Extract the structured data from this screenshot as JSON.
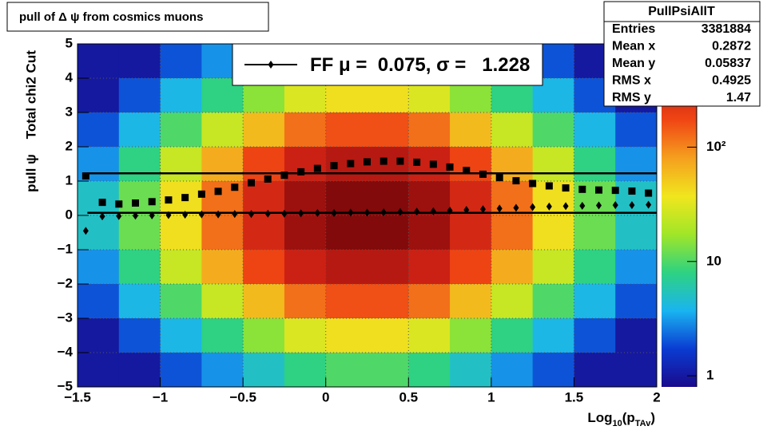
{
  "chart_data": {
    "type": "heatmap2d",
    "title": "pull of Δ ψ from cosmics muons",
    "ylabel": "pull ψ    Total chi2 Cut",
    "xlabel_parts": [
      {
        "text": "Log"
      },
      {
        "text": "10",
        "sub": true
      },
      {
        "text": "(p"
      },
      {
        "text": "TAv",
        "sub": true
      },
      {
        "text": ")"
      }
    ],
    "xlim": [
      -1.5,
      2
    ],
    "ylim": [
      -5,
      5
    ],
    "xticks": [
      {
        "value": -1.5,
        "label": "−1.5"
      },
      {
        "value": -1,
        "label": "−1"
      },
      {
        "value": -0.5,
        "label": "−0.5"
      },
      0,
      0.5,
      1,
      1.5,
      2
    ],
    "yticks": [
      {
        "value": -5,
        "label": "−5"
      },
      {
        "value": -4,
        "label": "−4"
      },
      {
        "value": -3,
        "label": "−3"
      },
      {
        "value": -2,
        "label": "−2"
      },
      {
        "value": -1,
        "label": "−1"
      },
      0,
      1,
      2,
      3,
      4,
      5
    ],
    "grid": true,
    "heatmap": {
      "x_edges": [
        -1.5,
        -1.25,
        -1,
        -0.75,
        -0.5,
        -0.25,
        0,
        0.25,
        0.5,
        0.75,
        1,
        1.25,
        1.5,
        1.75,
        2
      ],
      "y_edges": [
        5,
        4,
        3,
        2,
        1,
        0,
        -1,
        -2,
        -3,
        -4,
        -5
      ],
      "counts": [
        [
          1,
          1,
          2,
          3,
          5,
          8,
          10,
          10,
          8,
          5,
          3,
          2,
          1,
          1
        ],
        [
          1,
          2,
          4,
          8,
          15,
          30,
          40,
          40,
          30,
          15,
          8,
          4,
          2,
          1
        ],
        [
          2,
          4,
          10,
          25,
          60,
          120,
          160,
          160,
          120,
          60,
          25,
          10,
          4,
          2
        ],
        [
          3,
          8,
          25,
          70,
          180,
          350,
          450,
          450,
          350,
          180,
          70,
          25,
          8,
          3
        ],
        [
          5,
          12,
          40,
          120,
          300,
          600,
          800,
          800,
          600,
          300,
          120,
          40,
          12,
          5
        ],
        [
          5,
          12,
          40,
          120,
          300,
          600,
          800,
          800,
          600,
          300,
          120,
          40,
          12,
          5
        ],
        [
          3,
          8,
          25,
          70,
          180,
          350,
          450,
          450,
          350,
          180,
          70,
          25,
          8,
          3
        ],
        [
          2,
          4,
          10,
          25,
          60,
          120,
          160,
          160,
          120,
          60,
          25,
          10,
          4,
          2
        ],
        [
          1,
          2,
          4,
          8,
          15,
          30,
          40,
          40,
          30,
          15,
          8,
          4,
          2,
          1
        ],
        [
          1,
          1,
          2,
          3,
          5,
          8,
          10,
          10,
          8,
          5,
          3,
          2,
          1,
          1
        ]
      ]
    },
    "zlim": [
      0.8,
      800
    ],
    "zlog": true,
    "zticks": [
      1,
      10,
      {
        "value": 100,
        "label": "10²"
      }
    ],
    "palette": [
      "#1a0a8c",
      "#0a3cd2",
      "#1ab4f0",
      "#2ed282",
      "#a0e628",
      "#f0e61e",
      "#f5a01e",
      "#f04614",
      "#c81e14",
      "#820a0a"
    ],
    "x": [
      -1.45,
      -1.35,
      -1.25,
      -1.15,
      -1.05,
      -0.95,
      -0.85,
      -0.75,
      -0.65,
      -0.55,
      -0.45,
      -0.35,
      -0.25,
      -0.15,
      -0.05,
      0.05,
      0.15,
      0.25,
      0.35,
      0.45,
      0.55,
      0.65,
      0.75,
      0.85,
      0.95,
      1.05,
      1.15,
      1.25,
      1.35,
      1.45,
      1.55,
      1.65,
      1.75,
      1.85,
      1.95
    ],
    "series": [
      {
        "marker": "square",
        "color": "#000000",
        "values": [
          1.15,
          0.38,
          0.33,
          0.36,
          0.4,
          0.45,
          0.52,
          0.62,
          0.7,
          0.82,
          0.95,
          1.06,
          1.17,
          1.27,
          1.37,
          1.45,
          1.51,
          1.56,
          1.58,
          1.58,
          1.55,
          1.49,
          1.41,
          1.31,
          1.2,
          1.1,
          1.01,
          0.93,
          0.86,
          0.8,
          0.76,
          0.74,
          0.73,
          0.71,
          0.65
        ]
      },
      {
        "marker": "diamond",
        "color": "#000000",
        "values": [
          -0.45,
          -0.03,
          -0.02,
          -0.01,
          0.0,
          0.01,
          0.02,
          0.03,
          0.03,
          0.04,
          0.04,
          0.05,
          0.05,
          0.06,
          0.07,
          0.07,
          0.08,
          0.08,
          0.09,
          0.1,
          0.11,
          0.12,
          0.14,
          0.16,
          0.18,
          0.2,
          0.22,
          0.24,
          0.26,
          0.27,
          0.28,
          0.29,
          0.3,
          0.3,
          0.31
        ]
      }
    ],
    "fit": {
      "name": "FF",
      "mu_label": "μ =",
      "sigma_label": ", σ =",
      "mu": 0.075,
      "sigma": 1.228
    },
    "stats": {
      "title": "PullPsiAllT",
      "rows": [
        [
          "Entries",
          3381884
        ],
        [
          "Mean x",
          0.2872
        ],
        [
          "Mean y",
          0.05837
        ],
        [
          "RMS x",
          0.4925
        ],
        [
          "RMS y",
          1.47
        ]
      ]
    }
  }
}
